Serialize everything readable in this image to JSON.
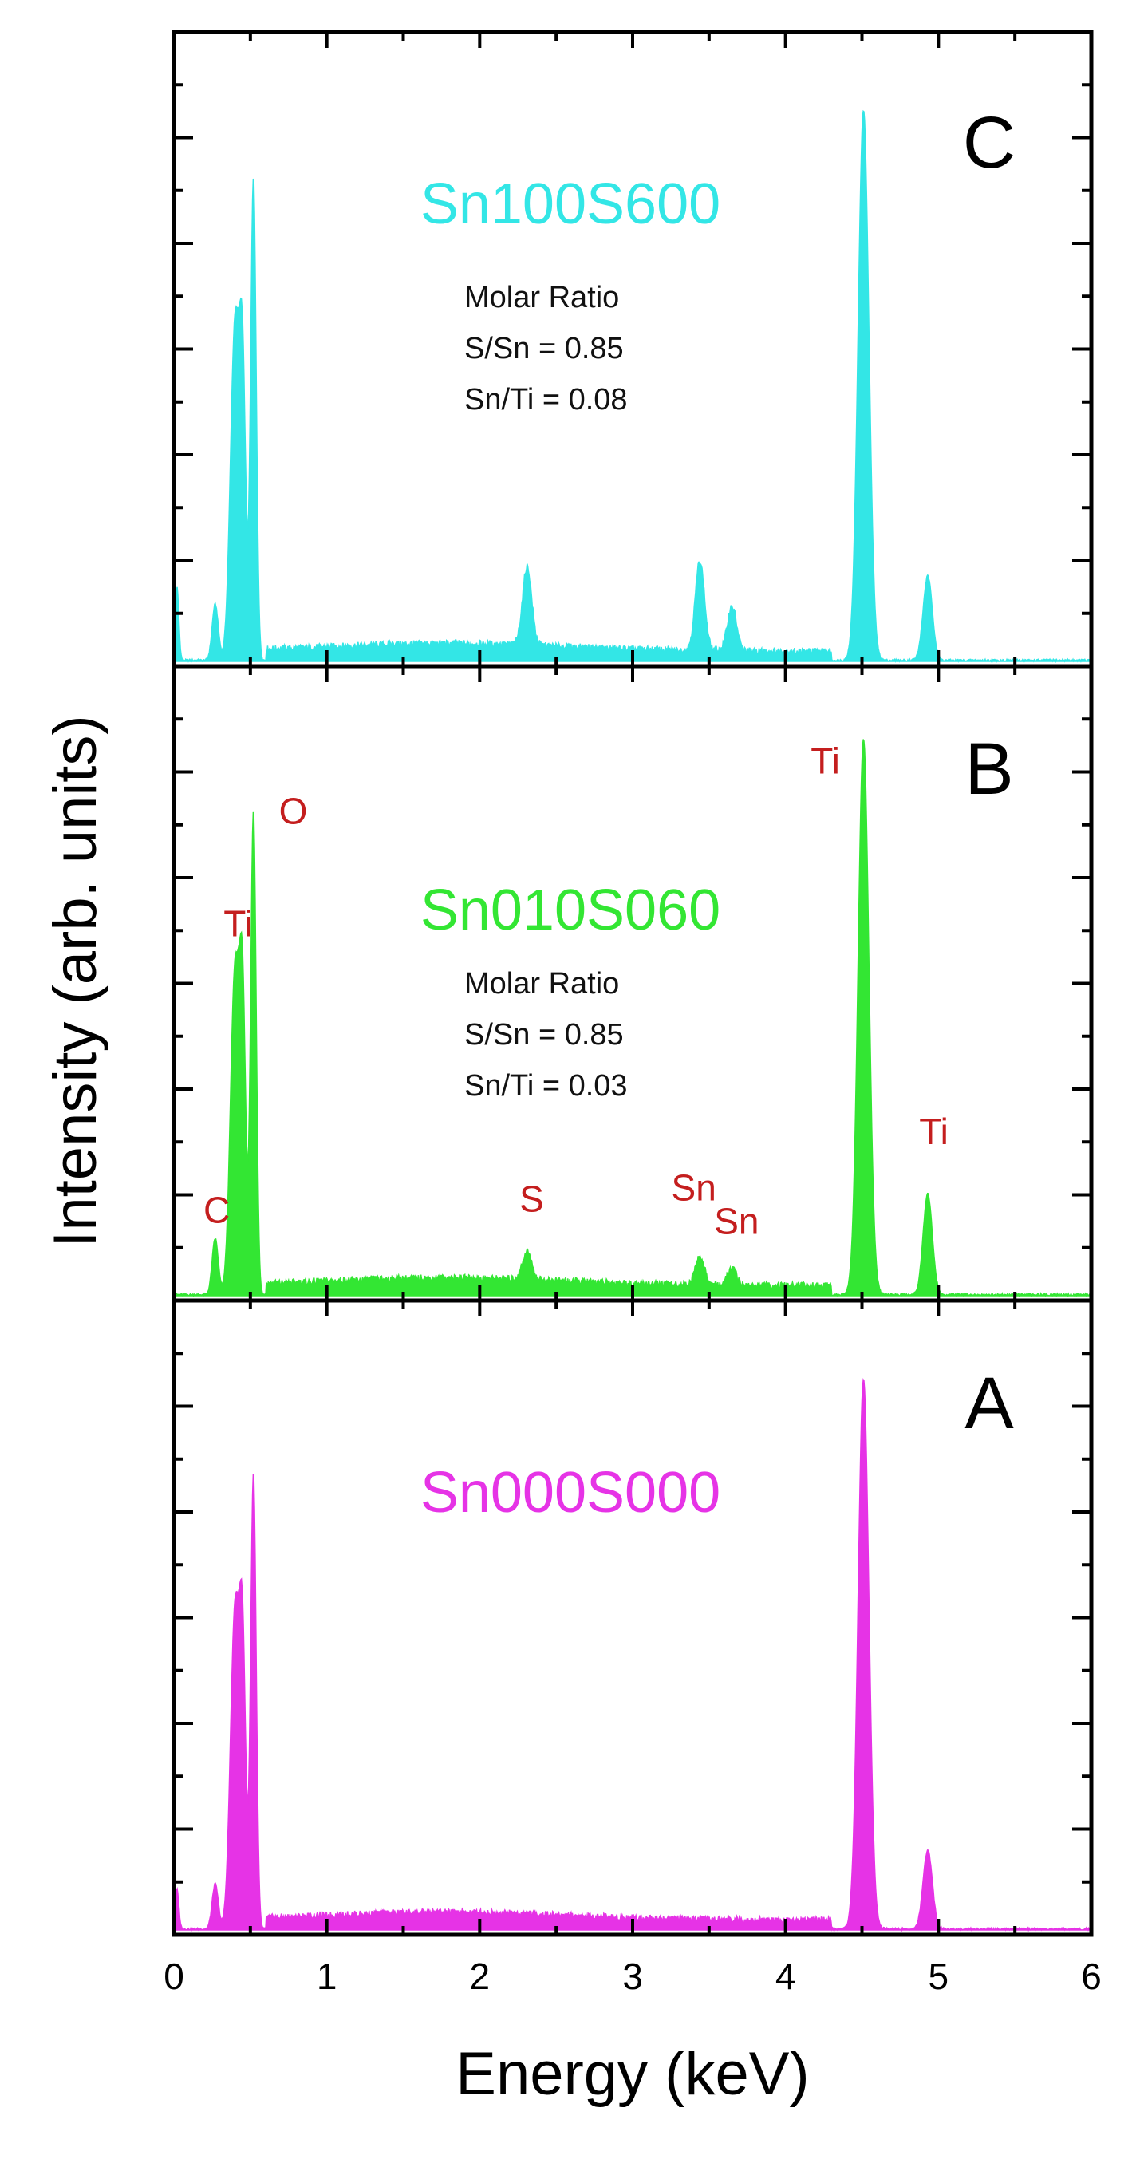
{
  "chart_data": {
    "type": "area",
    "xlabel": "Energy (keV)",
    "ylabel": "Intensity (arb. units)",
    "xlim": [
      0,
      6
    ],
    "x_ticks": [
      0,
      1,
      2,
      3,
      4,
      5,
      6
    ],
    "ylim": [
      0,
      1
    ],
    "panels": [
      {
        "id": "C",
        "panel_label": "C",
        "sample_name": "Sn100S600",
        "color": "#33e6e6",
        "note_lines": [
          "Molar Ratio",
          "S/Sn  = 0.85",
          "Sn/Ti = 0.08"
        ],
        "peaks": [
          {
            "center": 0.02,
            "height": 0.13,
            "width": 0.012
          },
          {
            "center": 0.27,
            "height": 0.1,
            "width": 0.02
          },
          {
            "center": 0.4,
            "height": 0.6,
            "width": 0.03
          },
          {
            "center": 0.45,
            "height": 0.45,
            "width": 0.02
          },
          {
            "center": 0.52,
            "height": 0.86,
            "width": 0.018
          },
          {
            "center": 2.31,
            "height": 0.14,
            "width": 0.03
          },
          {
            "center": 3.44,
            "height": 0.16,
            "width": 0.03
          },
          {
            "center": 3.65,
            "height": 0.08,
            "width": 0.03
          },
          {
            "center": 4.51,
            "height": 0.98,
            "width": 0.035
          },
          {
            "center": 4.93,
            "height": 0.15,
            "width": 0.03
          }
        ],
        "element_labels": []
      },
      {
        "id": "B",
        "panel_label": "B",
        "sample_name": "Sn010S060",
        "color": "#33e633",
        "note_lines": [
          "Molar Ratio",
          "S/Sn = 0.85",
          "Sn/Ti = 0.03"
        ],
        "peaks": [
          {
            "center": 0.27,
            "height": 0.1,
            "width": 0.02
          },
          {
            "center": 0.4,
            "height": 0.58,
            "width": 0.03
          },
          {
            "center": 0.45,
            "height": 0.46,
            "width": 0.02
          },
          {
            "center": 0.52,
            "height": 0.86,
            "width": 0.018
          },
          {
            "center": 2.31,
            "height": 0.05,
            "width": 0.03
          },
          {
            "center": 3.44,
            "height": 0.05,
            "width": 0.03
          },
          {
            "center": 3.65,
            "height": 0.03,
            "width": 0.03
          },
          {
            "center": 4.51,
            "height": 0.99,
            "width": 0.035
          },
          {
            "center": 4.93,
            "height": 0.18,
            "width": 0.03
          }
        ],
        "element_labels": [
          {
            "text": "O",
            "x": 0.78,
            "y": 0.84
          },
          {
            "text": "Ti",
            "x": 0.42,
            "y": 0.64
          },
          {
            "text": "C",
            "x": 0.28,
            "y": 0.13
          },
          {
            "text": "S",
            "x": 2.34,
            "y": 0.15
          },
          {
            "text": "Sn",
            "x": 3.4,
            "y": 0.17
          },
          {
            "text": "Sn",
            "x": 3.68,
            "y": 0.11
          },
          {
            "text": "Ti",
            "x": 4.26,
            "y": 0.93
          },
          {
            "text": "Ti",
            "x": 4.97,
            "y": 0.27
          }
        ]
      },
      {
        "id": "A",
        "panel_label": "A",
        "sample_name": "Sn000S000",
        "color": "#e633e6",
        "note_lines": [],
        "peaks": [
          {
            "center": 0.02,
            "height": 0.07,
            "width": 0.012
          },
          {
            "center": 0.27,
            "height": 0.08,
            "width": 0.02
          },
          {
            "center": 0.4,
            "height": 0.57,
            "width": 0.03
          },
          {
            "center": 0.45,
            "height": 0.44,
            "width": 0.02
          },
          {
            "center": 0.52,
            "height": 0.81,
            "width": 0.018
          },
          {
            "center": 4.51,
            "height": 0.98,
            "width": 0.035
          },
          {
            "center": 4.93,
            "height": 0.14,
            "width": 0.03
          }
        ],
        "element_labels": []
      }
    ]
  }
}
